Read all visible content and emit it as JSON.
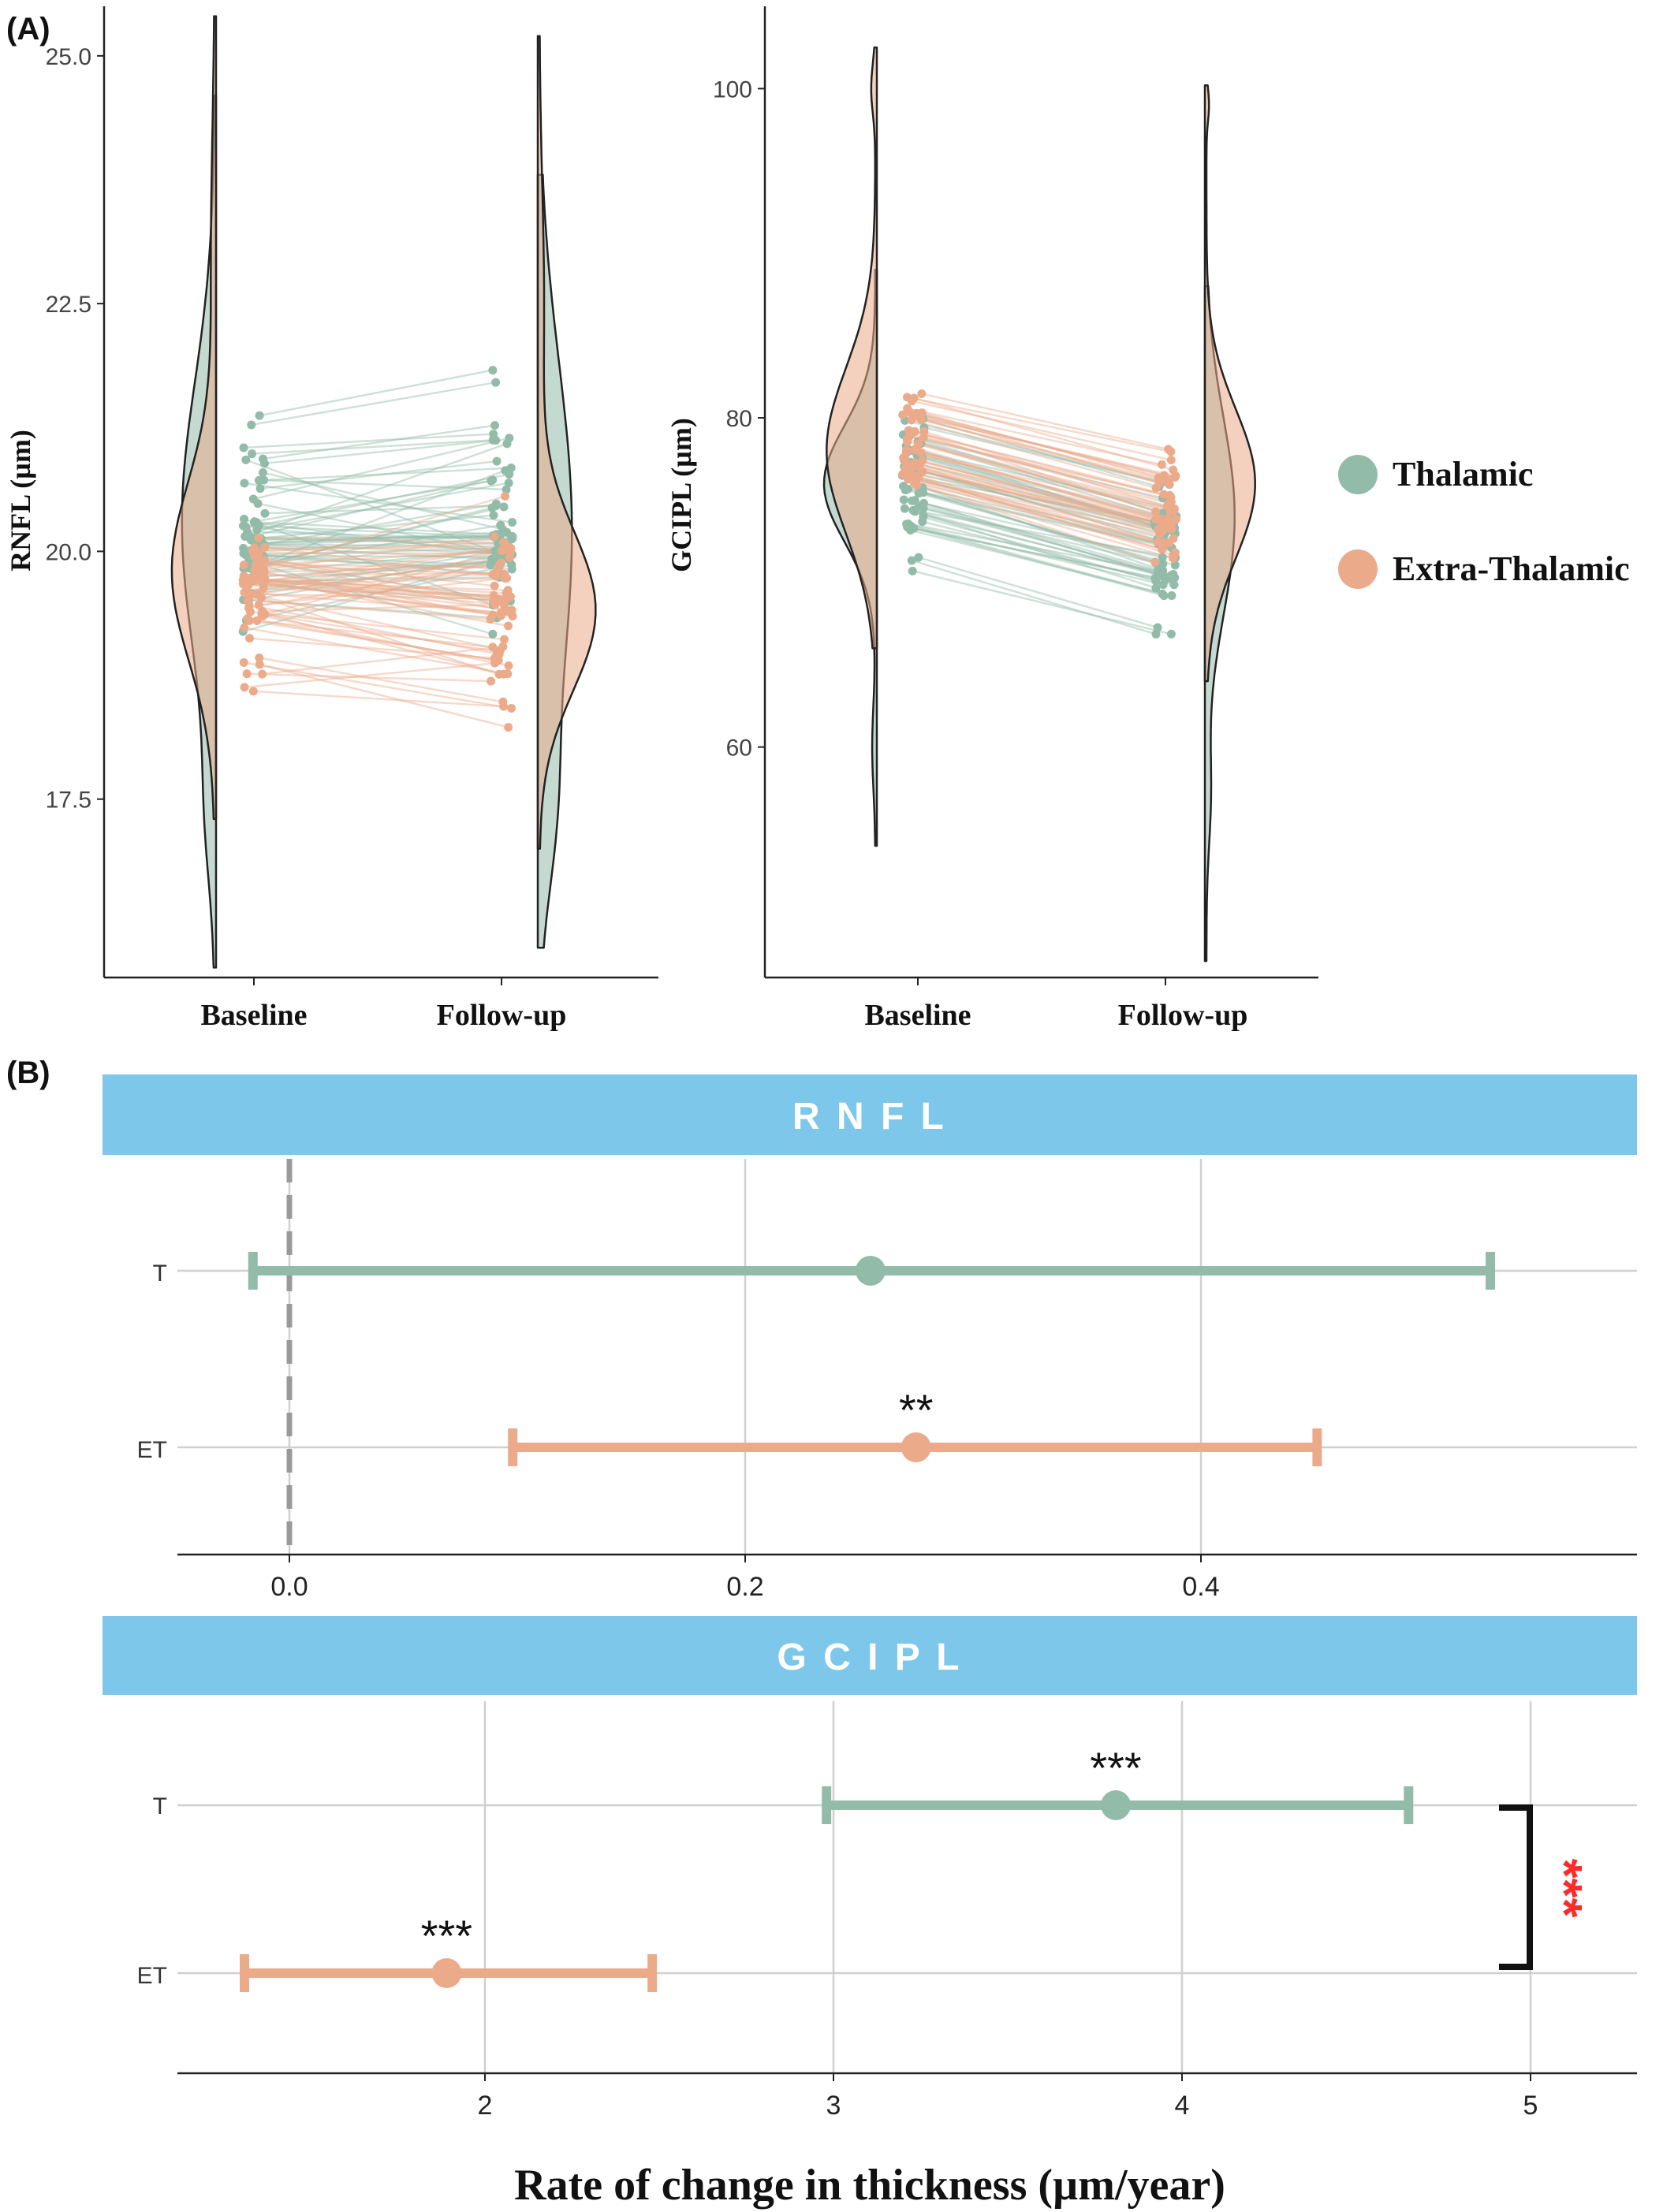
{
  "panel_labels": {
    "a": "(A)",
    "b": "(B)"
  },
  "colors": {
    "thalamic": "#93bba9",
    "extra_thalamic": "#ebab8b",
    "strip": "#7dc7eb",
    "violin_overlap": "#b6bea3",
    "sig_red": "#ff2a2a"
  },
  "legend": {
    "items": [
      {
        "label": "Thalamic",
        "color": "#93bba9"
      },
      {
        "label": "Extra-Thalamic",
        "color": "#ebab8b"
      }
    ]
  },
  "chart_data": [
    {
      "id": "rnfl_violin",
      "type": "violin-paired-scatter",
      "ylabel": "RNFL (µm)",
      "categories": [
        "Baseline",
        "Follow-up"
      ],
      "ylim": [
        15.7,
        25.5
      ],
      "yticks": [
        "17.5",
        "20.0",
        "22.5",
        "25.0"
      ],
      "series": [
        {
          "name": "Thalamic",
          "baseline_range": [
            15.8,
            24.6
          ],
          "followup_range": [
            16.0,
            23.8
          ],
          "baseline_median": 20.1,
          "followup_median": 20.3
        },
        {
          "name": "Extra-Thalamic",
          "baseline_range": [
            17.3,
            25.4
          ],
          "followup_range": [
            17.0,
            25.2
          ],
          "baseline_median": 19.7,
          "followup_median": 19.5
        }
      ]
    },
    {
      "id": "gcipl_violin",
      "type": "violin-paired-scatter",
      "ylabel": "GCIPL (µm)",
      "categories": [
        "Baseline",
        "Follow-up"
      ],
      "ylim": [
        46,
        105
      ],
      "yticks": [
        "60",
        "80",
        "100"
      ],
      "series": [
        {
          "name": "Thalamic",
          "baseline_range": [
            54.0,
            89.0
          ],
          "followup_range": [
            47.0,
            88.0
          ],
          "baseline_median": 76,
          "followup_median": 74
        },
        {
          "name": "Extra-Thalamic",
          "baseline_range": [
            66.0,
            102.5
          ],
          "followup_range": [
            64.0,
            100.2
          ],
          "baseline_median": 78,
          "followup_median": 76
        }
      ]
    },
    {
      "id": "rnfl_forest",
      "type": "forest",
      "title": "R N F L",
      "categories": [
        "T",
        "ET"
      ],
      "xticks": [
        "0.0",
        "0.2",
        "0.4"
      ],
      "xlim": [
        -0.048,
        0.59
      ],
      "reference_line": 0,
      "points": [
        {
          "label": "T",
          "estimate": 0.255,
          "lower": -0.016,
          "upper": 0.527,
          "sig": ""
        },
        {
          "label": "ET",
          "estimate": 0.275,
          "lower": 0.098,
          "upper": 0.451,
          "sig": "**"
        }
      ]
    },
    {
      "id": "gcipl_forest",
      "type": "forest",
      "title": "G C I P L",
      "categories": [
        "T",
        "ET"
      ],
      "xticks": [
        "2",
        "3",
        "4",
        "5"
      ],
      "xlim": [
        1.05,
        5.29
      ],
      "xlabel": "Rate of change in thickness (µm/year)",
      "points": [
        {
          "label": "T",
          "estimate": 3.81,
          "lower": 2.98,
          "upper": 4.65,
          "sig": "***"
        },
        {
          "label": "ET",
          "estimate": 1.89,
          "lower": 1.31,
          "upper": 2.48,
          "sig": "***"
        }
      ],
      "comparison": {
        "between": [
          "T",
          "ET"
        ],
        "sig": "***"
      }
    }
  ]
}
